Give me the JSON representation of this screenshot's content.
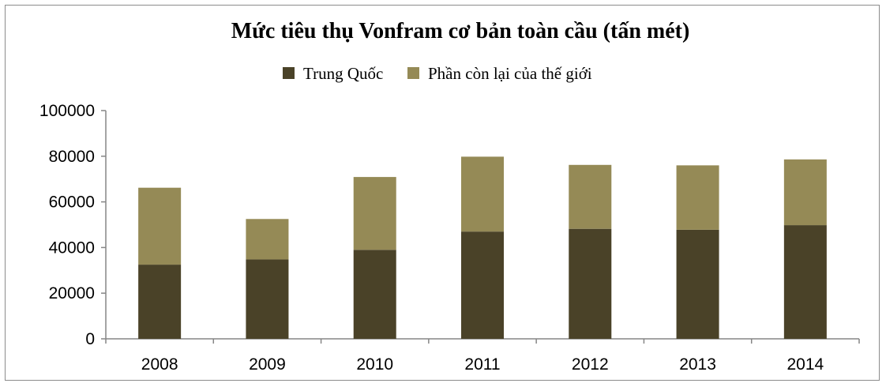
{
  "chart_data": {
    "type": "bar",
    "stacked": true,
    "title": "Mức tiêu thụ Vonfram cơ bản toàn cầu (tấn mét)",
    "categories": [
      "2008",
      "2009",
      "2010",
      "2011",
      "2012",
      "2013",
      "2014"
    ],
    "series": [
      {
        "name": "Trung Quốc",
        "color": "#4a4228",
        "values": [
          32500,
          34800,
          39000,
          47000,
          48200,
          47800,
          49800
        ]
      },
      {
        "name": "Phần còn lại của thế giới",
        "color": "#958a56",
        "values": [
          33700,
          17700,
          31900,
          32800,
          28000,
          28200,
          28800
        ]
      }
    ],
    "ylim": [
      0,
      100000
    ],
    "yticks": [
      "0",
      "20000",
      "40000",
      "60000",
      "80000",
      "100000"
    ],
    "grid": false,
    "legend_position": "top"
  }
}
